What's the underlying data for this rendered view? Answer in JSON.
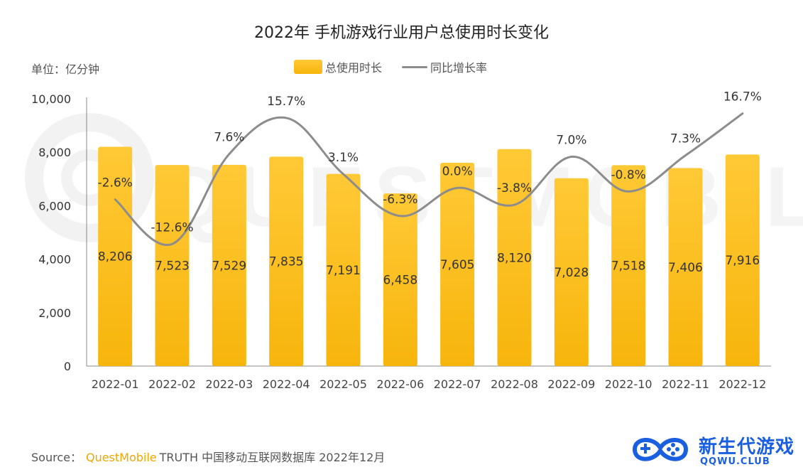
{
  "page": {
    "title": "2022年 手机游戏行业用户总使用时长变化",
    "unit": "单位：亿分钟",
    "source_prefix": "Source：",
    "source_brand": "QuestMobile",
    "source_rest": "TRUTH 中国移动互联网数据库 2022年12月",
    "logo_main": "新生代游戏",
    "logo_sub": "QQWU.CLUB",
    "watermark": "QUESTMOBILE"
  },
  "colors": {
    "bar_top": "#ffc936",
    "bar_bottom": "#f7b50c",
    "line": "#8c8c8c",
    "axis": "#888888",
    "text": "#333333",
    "logo": "#1a5fe0"
  },
  "chart_data": {
    "type": "bar",
    "title": "2022年 手机游戏行业用户总使用时长变化",
    "categories": [
      "2022-01",
      "2022-02",
      "2022-03",
      "2022-04",
      "2022-05",
      "2022-06",
      "2022-07",
      "2022-08",
      "2022-09",
      "2022-10",
      "2022-11",
      "2022-12"
    ],
    "series": [
      {
        "name": "总使用时长",
        "kind": "bar",
        "values": [
          8206,
          7523,
          7529,
          7835,
          7191,
          6458,
          7605,
          8120,
          7028,
          7518,
          7406,
          7916
        ],
        "labels": [
          "8,206",
          "7,523",
          "7,529",
          "7,835",
          "7,191",
          "6,458",
          "7,605",
          "8,120",
          "7,028",
          "7,518",
          "7,406",
          "7,916"
        ]
      },
      {
        "name": "同比增长率",
        "kind": "line",
        "axis": "secondary",
        "values": [
          -2.6,
          -12.6,
          7.6,
          15.7,
          3.1,
          -6.3,
          0.0,
          -3.8,
          7.0,
          -0.8,
          7.3,
          16.7
        ],
        "labels": [
          "-2.6%",
          "-12.6%",
          "7.6%",
          "15.7%",
          "3.1%",
          "-6.3%",
          "0.0%",
          "-3.8%",
          "7.0%",
          "-0.8%",
          "7.3%",
          "16.7%"
        ]
      }
    ],
    "ylim": [
      0,
      10000
    ],
    "yticks": [
      0,
      2000,
      4000,
      6000,
      8000,
      10000
    ],
    "ytick_labels": [
      "0",
      "2,000",
      "4,000",
      "6,000",
      "8,000",
      "10,000"
    ],
    "y2lim": [
      -40,
      20
    ],
    "xlabel": "",
    "ylabel": "亿分钟",
    "legend": "top-center",
    "grid": false
  }
}
